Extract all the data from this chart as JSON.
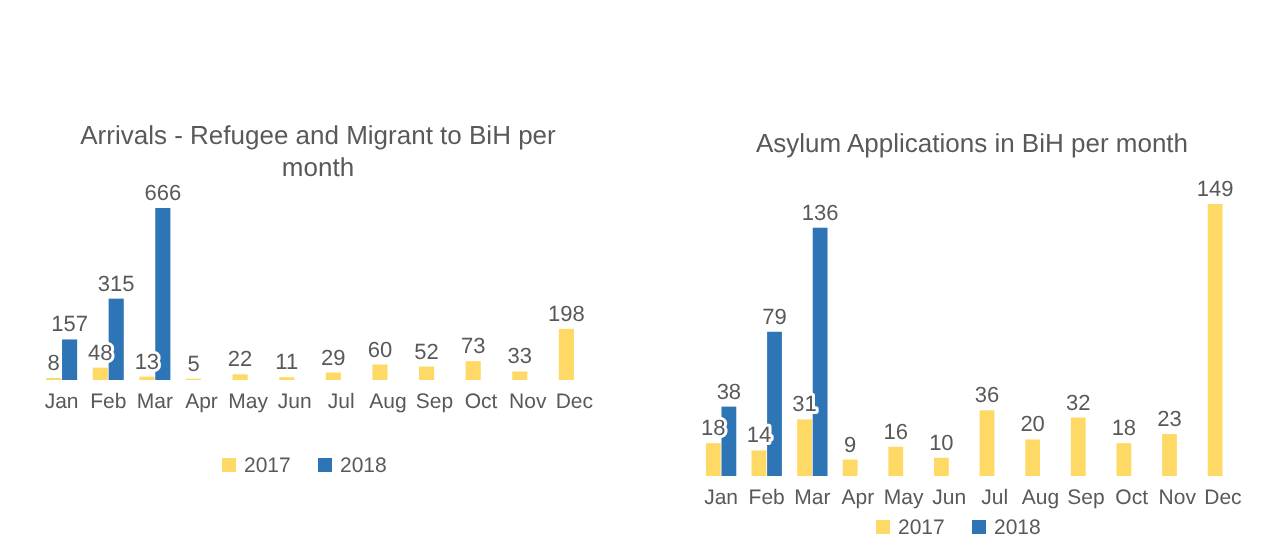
{
  "chart_data": [
    {
      "type": "bar",
      "title": "Arrivals - Refugee and Migrant to BiH per month",
      "categories": [
        "Jan",
        "Feb",
        "Mar",
        "Apr",
        "May",
        "Jun",
        "Jul",
        "Aug",
        "Sep",
        "Oct",
        "Nov",
        "Dec"
      ],
      "data_labels": true,
      "legend": "bottom",
      "series": [
        {
          "name": "2017",
          "color": "#ffd966",
          "values": [
            8,
            48,
            13,
            5,
            22,
            11,
            29,
            60,
            52,
            73,
            33,
            198
          ]
        },
        {
          "name": "2018",
          "color": "#2e75b6",
          "values": [
            157,
            315,
            666,
            null,
            null,
            null,
            null,
            null,
            null,
            null,
            null,
            null
          ]
        }
      ]
    },
    {
      "type": "bar",
      "title": "Asylum Applications in BiH per month",
      "categories": [
        "Jan",
        "Feb",
        "Mar",
        "Apr",
        "May",
        "Jun",
        "Jul",
        "Aug",
        "Sep",
        "Oct",
        "Nov",
        "Dec"
      ],
      "data_labels": true,
      "legend": "bottom",
      "series": [
        {
          "name": "2017",
          "color": "#ffd966",
          "values": [
            18,
            14,
            31,
            9,
            16,
            10,
            36,
            20,
            32,
            18,
            23,
            149
          ]
        },
        {
          "name": "2018",
          "color": "#2e75b6",
          "values": [
            38,
            79,
            136,
            null,
            null,
            null,
            null,
            null,
            null,
            null,
            null,
            null
          ]
        }
      ]
    }
  ]
}
